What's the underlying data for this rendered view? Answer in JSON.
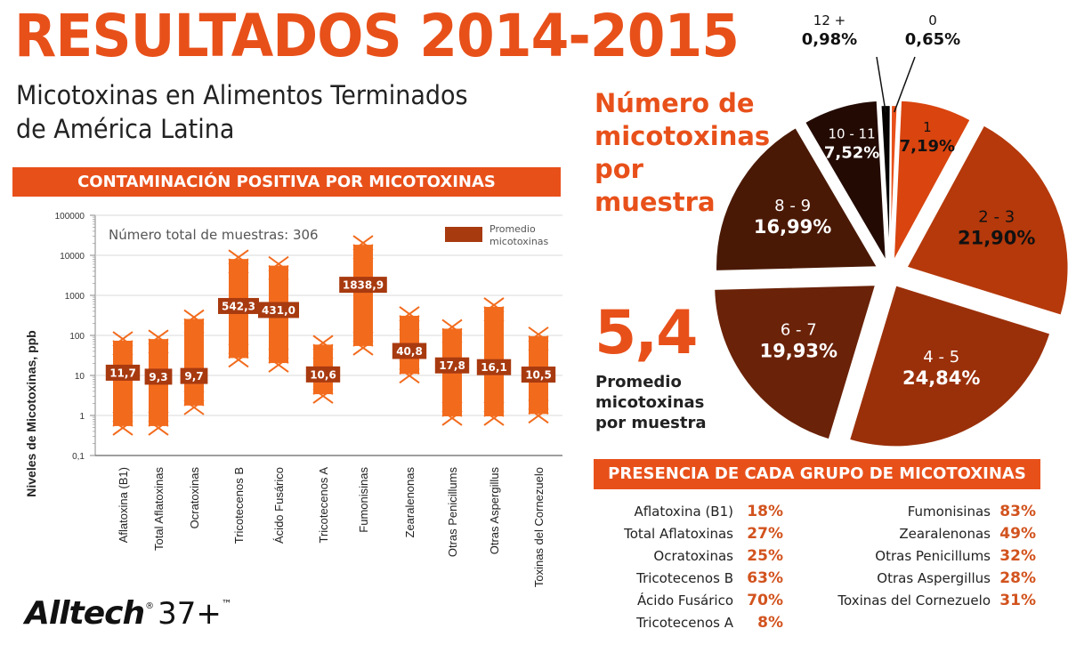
{
  "header": {
    "title": "RESULTADOS 2014-2015",
    "subtitle_line1": "Micotoxinas en Alimentos Terminados",
    "subtitle_line2": "de América Latina"
  },
  "contamination_banner": "CONTAMINACIÓN POSITIVA POR MICOTOXINAS",
  "presence_banner": "PRESENCIA DE CADA GRUPO DE MICOTOXINAS",
  "pie_heading": [
    "Número de",
    "micotoxinas",
    "por",
    "muestra"
  ],
  "average": {
    "value": "5,4",
    "caption": [
      "Promedio",
      "micotoxinas",
      "por muestra"
    ]
  },
  "logo": {
    "brand": "Alltech",
    "reg": "®",
    "suffix": "37+",
    "tm": "™"
  },
  "colors": {
    "accent": "#e8501a",
    "bar": "#f26b1d",
    "label_box": "#a83a10",
    "presence_value": "#d2531e"
  },
  "presence": {
    "left": [
      {
        "name": "Aflatoxina (B1)",
        "value": "18%"
      },
      {
        "name": "Total Aflatoxinas",
        "value": "27%"
      },
      {
        "name": "Ocratoxinas",
        "value": "25%"
      },
      {
        "name": "Tricotecenos B",
        "value": "63%"
      },
      {
        "name": "Ácido Fusárico",
        "value": "70%"
      },
      {
        "name": "Tricotecenos A",
        "value": "8%"
      }
    ],
    "right": [
      {
        "name": "Fumonisinas",
        "value": "83%"
      },
      {
        "name": "Zearalenonas",
        "value": "49%"
      },
      {
        "name": "Otras Penicillums",
        "value": "32%"
      },
      {
        "name": "Otras Aspergillus",
        "value": "28%"
      },
      {
        "name": "Toxinas del Cornezuelo",
        "value": "31%"
      }
    ]
  },
  "chart_data": [
    {
      "type": "bar",
      "subtype": "range-with-average-marker",
      "title": "CONTAMINACIÓN POSITIVA POR MICOTOXINAS",
      "annotation": "Número total de muestras: 306",
      "ylabel": "Niveles de Micotoxinas, ppb",
      "xlabel": "",
      "yscale": "log",
      "ylim": [
        0.1,
        100000
      ],
      "yticks": [
        "100000",
        "10000",
        "1000",
        "100",
        "10",
        "1",
        "0,1"
      ],
      "ytick_values": [
        100000,
        10000,
        1000,
        100,
        10,
        1,
        0.1
      ],
      "grid": true,
      "legend": {
        "label": "Promedio micotoxinas",
        "position": "top-right"
      },
      "categories": [
        "Aflatoxina (B1)",
        "Total Aflatoxinas",
        "Ocratoxinas",
        "Tricotecenos B",
        "Ácido Fusárico",
        "Tricotecenos A",
        "Fumonisinas",
        "Zearalenonas",
        "Otras Penicillums",
        "Otras Aspergillus",
        "Toxinas del Cornezuelo"
      ],
      "averages": [
        11.7,
        9.3,
        9.7,
        542.3,
        431.0,
        10.6,
        1838.9,
        40.8,
        17.8,
        16.1,
        10.5
      ],
      "average_labels": [
        "11,7",
        "9,3",
        "9,7",
        "542,3",
        "431,0",
        "10,6",
        "1838,9",
        "40,8",
        "17,8",
        "16,1",
        "10,5"
      ],
      "range_max": [
        100,
        110,
        350,
        11000,
        7500,
        80,
        25000,
        420,
        200,
        700,
        130
      ],
      "range_min": [
        0.4,
        0.4,
        1.3,
        20,
        15,
        2.5,
        40,
        8,
        0.7,
        0.7,
        0.8
      ]
    },
    {
      "type": "pie",
      "title": "Número de micotoxinas por muestra",
      "categories": [
        "0",
        "1",
        "2 - 3",
        "4 - 5",
        "6 - 7",
        "8 - 9",
        "10 - 11",
        "12 +"
      ],
      "values": [
        0.65,
        7.19,
        21.9,
        24.84,
        19.93,
        16.99,
        7.52,
        0.98
      ],
      "value_labels": [
        "0,65%",
        "7,19%",
        "21,90%",
        "24,84%",
        "19,93%",
        "16,99%",
        "7,52%",
        "0,98%"
      ],
      "slice_colors": [
        "#e8501a",
        "#d9440f",
        "#b5390b",
        "#9a300a",
        "#6a2208",
        "#4a1905",
        "#230b04",
        "#050201"
      ],
      "text_colors": [
        "#111",
        "#111",
        "#111",
        "#fff",
        "#fff",
        "#fff",
        "#fff",
        "#111"
      ]
    }
  ]
}
